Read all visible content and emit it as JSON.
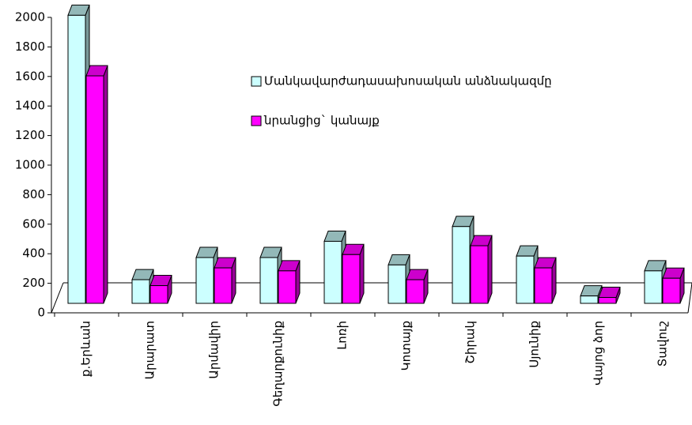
{
  "chart_data": {
    "type": "bar3d",
    "categories": [
      "ք.Երևան",
      "Արարատ",
      "Արմավիր",
      "Գեղարքունիք",
      "Լոռի",
      "Կոտայք",
      "Շիրակ",
      "Սյունիք",
      "Վայոց ձոր",
      "Տավուշ"
    ],
    "series": [
      {
        "name": "Մանկավարժադասախոսական անձնակազմը",
        "color": "#ccffff",
        "values": [
          1950,
          160,
          310,
          310,
          420,
          260,
          520,
          320,
          50,
          220
        ]
      },
      {
        "name": "նրանցից` կանայք",
        "color": "#ff00ff",
        "values": [
          1540,
          120,
          240,
          220,
          330,
          160,
          390,
          240,
          40,
          170
        ]
      }
    ],
    "ylim": [
      0,
      2000
    ],
    "yticks": [
      0,
      200,
      400,
      600,
      800,
      1000,
      1200,
      1400,
      1600,
      1800,
      2000
    ],
    "legend": "right"
  }
}
